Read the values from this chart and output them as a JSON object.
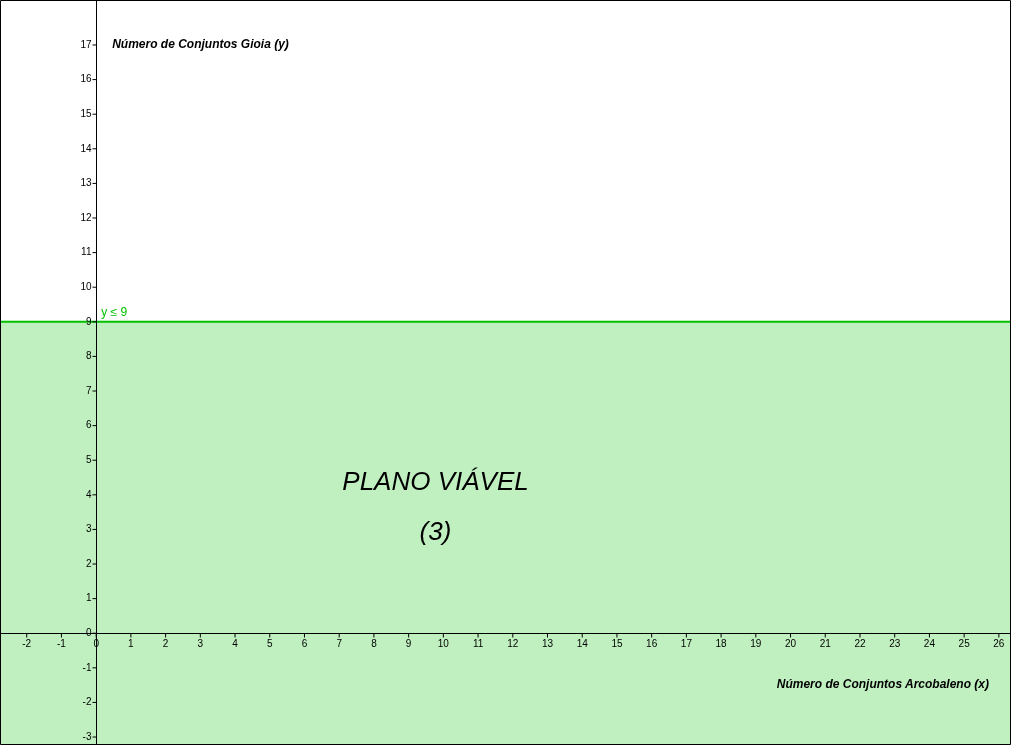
{
  "chart_data": {
    "type": "line",
    "xlabel": "Número de Conjuntos Arcobaleno (x)",
    "ylabel": "Número de Conjuntos Gioia (y)",
    "xlim": [
      -2.77,
      26.35
    ],
    "ylim": [
      -3.23,
      18.3
    ],
    "xticks": [
      -2,
      -1,
      0,
      1,
      2,
      3,
      4,
      5,
      6,
      7,
      8,
      9,
      10,
      11,
      12,
      13,
      14,
      15,
      16,
      17,
      18,
      19,
      20,
      21,
      22,
      23,
      24,
      25,
      26
    ],
    "yticks": [
      -3,
      -2,
      -1,
      0,
      1,
      2,
      3,
      4,
      5,
      6,
      7,
      8,
      9,
      10,
      11,
      12,
      13,
      14,
      15,
      16,
      17
    ],
    "legend": false,
    "ref_lines": [
      {
        "axis": "y",
        "value": 9,
        "label": "y ≤ 9",
        "color": "#00c000"
      }
    ],
    "bands": [
      {
        "axis": "y",
        "from": -3.23,
        "to": 9,
        "color": "#c0f0c0"
      }
    ],
    "annotations": [
      "PLANO VIÁVEL",
      "(3)"
    ]
  }
}
